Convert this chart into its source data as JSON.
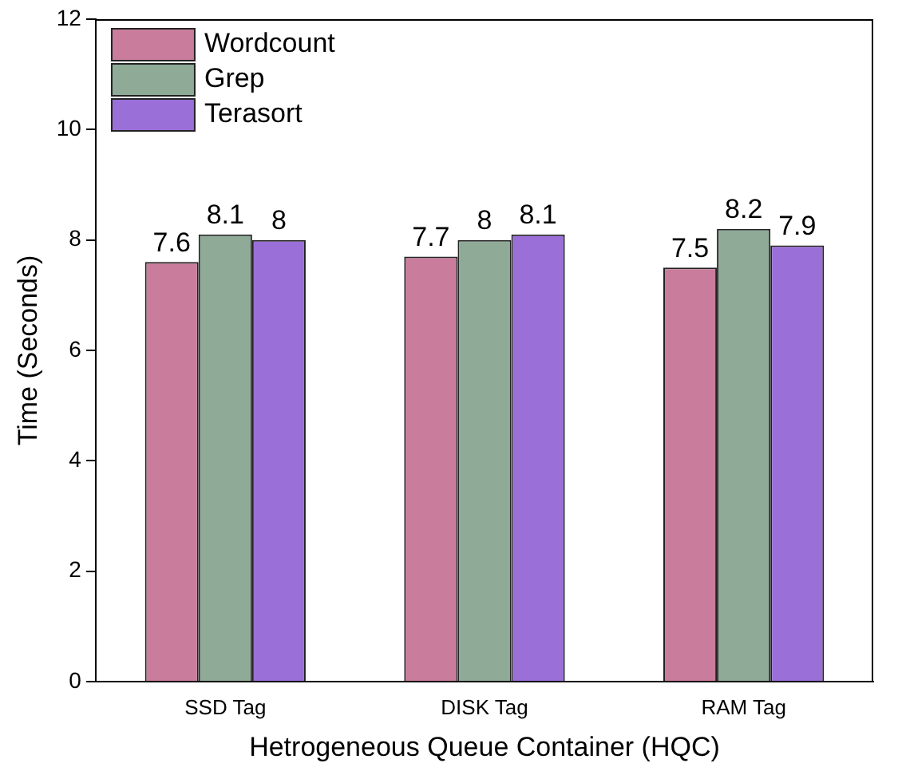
{
  "chart_data": {
    "type": "bar",
    "xlabel": "Hetrogeneous Queue Container (HQC)",
    "ylabel": "Time (Seconds)",
    "categories": [
      "SSD Tag",
      "DISK Tag",
      "RAM Tag"
    ],
    "series": [
      {
        "name": "Wordcount",
        "color": "#c97c9c",
        "values": [
          7.6,
          7.7,
          7.5
        ]
      },
      {
        "name": "Grep",
        "color": "#8fab98",
        "values": [
          8.1,
          8,
          8.2
        ]
      },
      {
        "name": "Terasort",
        "color": "#9a6fd8",
        "values": [
          8,
          8.1,
          7.9
        ]
      }
    ],
    "ylim": [
      0,
      12
    ],
    "yticks": [
      0,
      2,
      4,
      6,
      8,
      10,
      12
    ],
    "grid": false,
    "legend": "top left",
    "data_labels": true
  }
}
